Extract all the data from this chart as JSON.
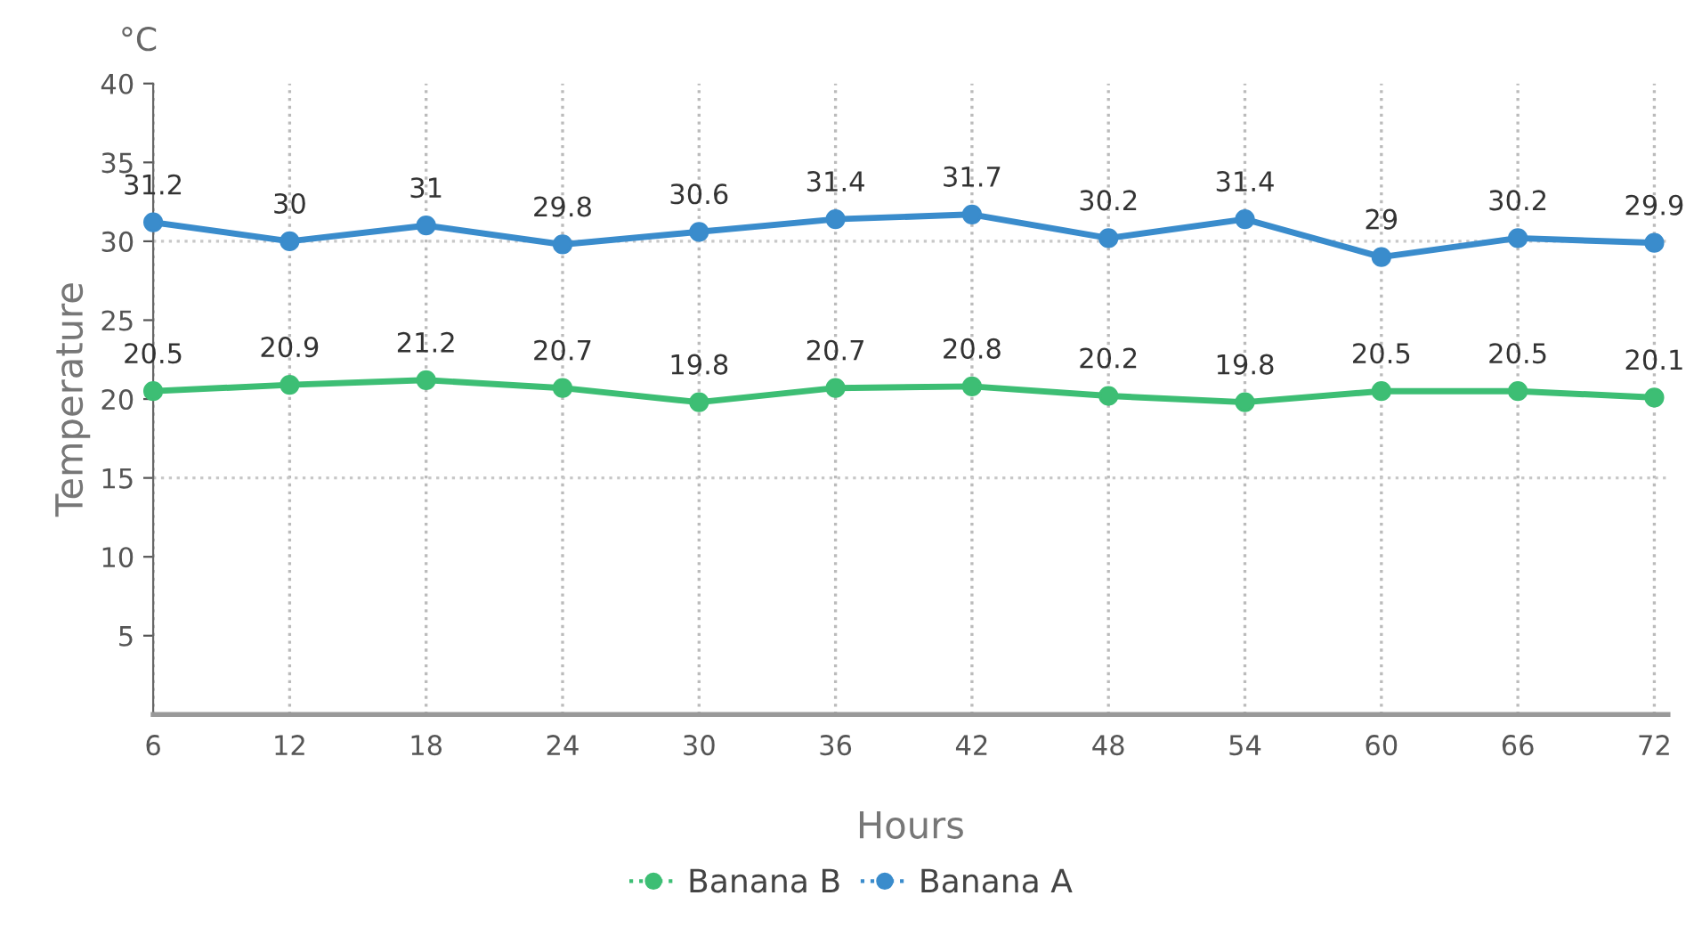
{
  "chart_data": {
    "type": "line",
    "xlabel": "Hours",
    "ylabel": "Temperature",
    "annotations": [
      "°C"
    ],
    "categories": [
      "6",
      "12",
      "18",
      "24",
      "30",
      "36",
      "42",
      "48",
      "54",
      "60",
      "66",
      "72"
    ],
    "series": [
      {
        "name": "Banana B",
        "color": "#3dbe74",
        "values": [
          20.5,
          20.9,
          21.2,
          20.7,
          19.8,
          20.7,
          20.8,
          20.2,
          19.8,
          20.5,
          20.5,
          20.1
        ]
      },
      {
        "name": "Banana A",
        "color": "#3a8ccc",
        "values": [
          31.2,
          30,
          31,
          29.8,
          30.6,
          31.4,
          31.7,
          30.2,
          31.4,
          29,
          30.2,
          29.9
        ]
      }
    ],
    "ylim": [
      0,
      40
    ],
    "yticks": [
      5,
      10,
      15,
      20,
      25,
      30,
      35,
      40
    ],
    "ref_lines": [
      {
        "axis": "y",
        "value": 15,
        "color": "#c8c8c8",
        "line_style": "dotted"
      },
      {
        "axis": "y",
        "value": 30,
        "color": "#c8c8c8",
        "line_style": "dotted"
      }
    ],
    "grid": "x",
    "legend": "bottom",
    "marker": "circle",
    "line_style": "solid",
    "data_labels": true
  }
}
